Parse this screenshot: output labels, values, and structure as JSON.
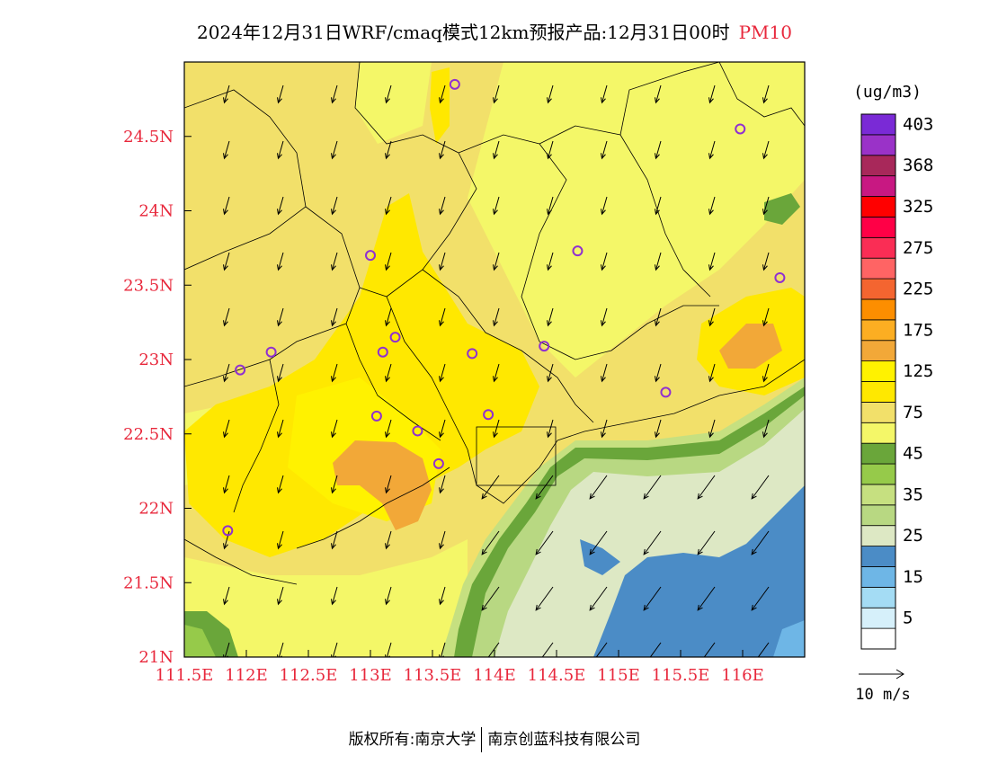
{
  "title": "2024年12月31日WRF/cmaq模式12km预报产品:12月31日00时",
  "title_suffix": "PM10",
  "legend": {
    "unit": "(ug/m3)",
    "bins": [
      {
        "color": "#ffffff",
        "label": ""
      },
      {
        "color": "#d6f0fa",
        "label": "5"
      },
      {
        "color": "#a4dcf4",
        "label": ""
      },
      {
        "color": "#6eb6e6",
        "label": "15"
      },
      {
        "color": "#4b8cc6",
        "label": ""
      },
      {
        "color": "#dde8c4",
        "label": "25"
      },
      {
        "color": "#b8d882",
        "label": ""
      },
      {
        "color": "#c6e080",
        "label": "35"
      },
      {
        "color": "#96ca4a",
        "label": ""
      },
      {
        "color": "#6aa63a",
        "label": "45"
      },
      {
        "color": "#f4f768",
        "label": ""
      },
      {
        "color": "#f2e06a",
        "label": "75"
      },
      {
        "color": "#ffe800",
        "label": ""
      },
      {
        "color": "#fff200",
        "label": "125"
      },
      {
        "color": "#f2a838",
        "label": ""
      },
      {
        "color": "#fcae22",
        "label": "175"
      },
      {
        "color": "#fd8e00",
        "label": ""
      },
      {
        "color": "#f46530",
        "label": "225"
      },
      {
        "color": "#ff6464",
        "label": ""
      },
      {
        "color": "#fa2d55",
        "label": "275"
      },
      {
        "color": "#ff0046",
        "label": ""
      },
      {
        "color": "#ff0000",
        "label": "325"
      },
      {
        "color": "#c81882",
        "label": ""
      },
      {
        "color": "#a8285a",
        "label": "368"
      },
      {
        "color": "#9a32c8",
        "label": ""
      },
      {
        "color": "#7a2ad6",
        "label": "403"
      }
    ],
    "wind_ref_label": "10 m/s"
  },
  "axes": {
    "x_ticks": [
      "111.5E",
      "112E",
      "112.5E",
      "113E",
      "113.5E",
      "114E",
      "114.5E",
      "115E",
      "115.5E",
      "116E"
    ],
    "y_ticks": [
      "21N",
      "21.5N",
      "22N",
      "22.5N",
      "23N",
      "23.5N",
      "24N",
      "24.5N"
    ],
    "x_values": [
      111.5,
      112,
      112.5,
      113,
      113.5,
      114,
      114.5,
      115,
      115.5,
      116
    ],
    "y_values": [
      21,
      21.5,
      22,
      22.5,
      23,
      23.5,
      24,
      24.5
    ],
    "lon_range": [
      111.5,
      116.5
    ],
    "lat_range": [
      21.0,
      25.0
    ]
  },
  "stations": [
    {
      "lon": 113.68,
      "lat": 24.85
    },
    {
      "lon": 115.98,
      "lat": 24.55
    },
    {
      "lon": 113.0,
      "lat": 23.7
    },
    {
      "lon": 114.67,
      "lat": 23.73
    },
    {
      "lon": 116.3,
      "lat": 23.55
    },
    {
      "lon": 112.2,
      "lat": 23.05
    },
    {
      "lon": 113.1,
      "lat": 23.05
    },
    {
      "lon": 113.2,
      "lat": 23.15
    },
    {
      "lon": 113.82,
      "lat": 23.04
    },
    {
      "lon": 114.4,
      "lat": 23.09
    },
    {
      "lon": 111.95,
      "lat": 22.93
    },
    {
      "lon": 115.38,
      "lat": 22.78
    },
    {
      "lon": 113.05,
      "lat": 22.62
    },
    {
      "lon": 113.95,
      "lat": 22.63
    },
    {
      "lon": 113.38,
      "lat": 22.52
    },
    {
      "lon": 113.55,
      "lat": 22.3
    },
    {
      "lon": 111.85,
      "lat": 21.85
    }
  ],
  "colors": {
    "axis_label": "#e8283c",
    "station": "#9030d0",
    "border": "#000000"
  },
  "footer": {
    "left": "版权所有:南京大学",
    "right": "南京创蓝科技有限公司"
  }
}
